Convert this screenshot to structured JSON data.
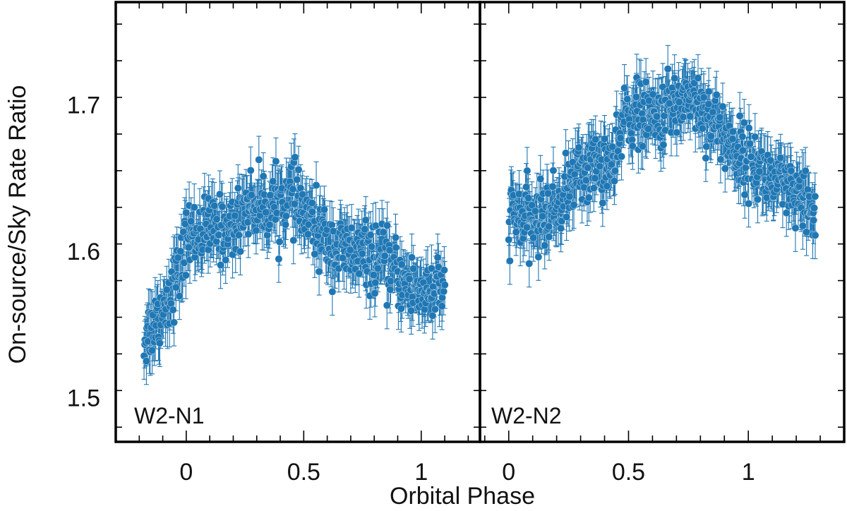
{
  "chart_data": {
    "type": "scatter",
    "xlabel": "Orbital Phase",
    "ylabel": "On-source/Sky Rate Ratio",
    "ylim": [
      1.47,
      1.77
    ],
    "yticks": [
      1.5,
      1.6,
      1.7
    ],
    "ytick_labels": [
      "1.5",
      "1.6",
      "1.7"
    ],
    "xticks": [
      0,
      0.5,
      1
    ],
    "xtick_labels": [
      "0",
      "0.5",
      "1"
    ],
    "error_bars": true,
    "marker_color": "#1f77b4",
    "panels": [
      {
        "label": "W2-N1",
        "xlim": [
          -0.3,
          1.25
        ],
        "x_range": [
          -0.18,
          1.1
        ],
        "n_points": 520,
        "error": 0.016,
        "noise": 0.011,
        "trend": [
          [
            -0.18,
            1.54
          ],
          [
            -0.1,
            1.56
          ],
          [
            -0.02,
            1.59
          ],
          [
            0.0,
            1.61
          ],
          [
            0.1,
            1.615
          ],
          [
            0.2,
            1.615
          ],
          [
            0.25,
            1.632
          ],
          [
            0.35,
            1.63
          ],
          [
            0.45,
            1.637
          ],
          [
            0.55,
            1.615
          ],
          [
            0.65,
            1.6
          ],
          [
            0.75,
            1.598
          ],
          [
            0.85,
            1.592
          ],
          [
            0.95,
            1.575
          ],
          [
            1.1,
            1.572
          ]
        ]
      },
      {
        "label": "W2-N2",
        "xlim": [
          -0.12,
          1.4
        ],
        "x_range": [
          0.0,
          1.28
        ],
        "n_points": 560,
        "error": 0.016,
        "noise": 0.011,
        "trend": [
          [
            0.0,
            1.625
          ],
          [
            0.1,
            1.62
          ],
          [
            0.2,
            1.63
          ],
          [
            0.3,
            1.655
          ],
          [
            0.4,
            1.66
          ],
          [
            0.45,
            1.658
          ],
          [
            0.48,
            1.695
          ],
          [
            0.6,
            1.69
          ],
          [
            0.7,
            1.7
          ],
          [
            0.75,
            1.708
          ],
          [
            0.85,
            1.69
          ],
          [
            0.95,
            1.668
          ],
          [
            1.05,
            1.655
          ],
          [
            1.15,
            1.642
          ],
          [
            1.28,
            1.625
          ]
        ]
      }
    ]
  }
}
